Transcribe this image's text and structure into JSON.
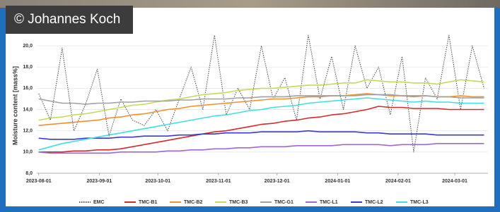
{
  "credit": "© Johannes Koch",
  "chart_data": {
    "type": "line",
    "y_label": "Moisture content [mass%]",
    "x": [
      "2023-08-01",
      "2023-08-07",
      "2023-08-13",
      "2023-08-19",
      "2023-08-25",
      "2023-08-31",
      "2023-09-06",
      "2023-09-12",
      "2023-09-18",
      "2023-09-24",
      "2023-09-30",
      "2023-10-06",
      "2023-10-12",
      "2023-10-18",
      "2023-10-24",
      "2023-10-30",
      "2023-11-05",
      "2023-11-11",
      "2023-11-17",
      "2023-11-23",
      "2023-11-29",
      "2023-12-05",
      "2023-12-11",
      "2023-12-17",
      "2023-12-23",
      "2023-12-29",
      "2024-01-04",
      "2024-01-10",
      "2024-01-16",
      "2024-01-22",
      "2024-01-28",
      "2024-02-03",
      "2024-02-09",
      "2024-02-15",
      "2024-02-21",
      "2024-02-27",
      "2024-03-04",
      "2024-03-10",
      "2024-03-16"
    ],
    "xlim": [
      "2023-07-31",
      "2024-03-18"
    ],
    "xticks": [
      "2023-08-01",
      "2023-09-01",
      "2023-10-01",
      "2023-11-01",
      "2023-12-01",
      "2024-01-01",
      "2024-02-01",
      "2024-03-01"
    ],
    "ylim": [
      8,
      21
    ],
    "yticks": [
      {
        "value": 8,
        "label": "8,0"
      },
      {
        "value": 10,
        "label": "10,0"
      },
      {
        "value": 12,
        "label": "12,0"
      },
      {
        "value": 14,
        "label": "14,0"
      },
      {
        "value": 16,
        "label": "16,0"
      },
      {
        "value": 18,
        "label": "18,0"
      },
      {
        "value": 20,
        "label": "20,0"
      }
    ],
    "grid": true,
    "legend": "bottom",
    "series": [
      {
        "name": "EMC",
        "color": "#555555",
        "linestyle": "dotted",
        "values": [
          15.5,
          13,
          19.8,
          12,
          14.5,
          17.8,
          11.5,
          15,
          13,
          12.5,
          14,
          12,
          15,
          18,
          14,
          21,
          13.5,
          16,
          14,
          20,
          15,
          17,
          13,
          21,
          15,
          19,
          14,
          20,
          16,
          18,
          13.5,
          19,
          10,
          17,
          15,
          21,
          14,
          20,
          16
        ]
      },
      {
        "name": "TMC-B1",
        "color": "#d42a2a",
        "values": [
          10,
          10,
          10,
          10.1,
          10.1,
          10.2,
          10.2,
          10.3,
          10.5,
          10.7,
          10.9,
          11.1,
          11.3,
          11.5,
          11.7,
          11.9,
          12,
          12.2,
          12.4,
          12.6,
          12.7,
          12.9,
          13,
          13.2,
          13.3,
          13.5,
          13.6,
          13.8,
          14,
          14.3,
          14.2,
          14.2,
          14.1,
          14.1,
          14.1,
          14,
          14,
          14,
          14
        ]
      },
      {
        "name": "TMC-B2",
        "color": "#f0902a",
        "values": [
          12.5,
          12.6,
          12.7,
          12.8,
          12.9,
          13,
          13.2,
          13.3,
          13.5,
          13.6,
          13.8,
          14,
          14.1,
          14.3,
          14.4,
          14.5,
          14.6,
          14.7,
          14.8,
          14.9,
          15,
          15,
          15.1,
          15.2,
          15.2,
          15.3,
          15.3,
          15.4,
          15.5,
          15.4,
          15.3,
          15.3,
          15.2,
          15.3,
          15.2,
          15.2,
          15.3,
          15.2,
          15.2
        ]
      },
      {
        "name": "TMC-B3",
        "color": "#c9d85a",
        "values": [
          13,
          13.2,
          13.3,
          13.5,
          13.6,
          13.8,
          14,
          14.2,
          14.4,
          14.5,
          14.7,
          14.9,
          15,
          15.2,
          15.4,
          15.5,
          15.6,
          15.8,
          15.9,
          16,
          16,
          16.1,
          16.2,
          16.3,
          16.3,
          16.4,
          16.5,
          16.5,
          16.8,
          16.7,
          16.6,
          16.6,
          16.5,
          16.5,
          16.4,
          16.6,
          16.8,
          16.7,
          16.6
        ]
      },
      {
        "name": "TMC-G1",
        "color": "#a0a0a0",
        "values": [
          15,
          14.8,
          14.6,
          14.6,
          14.5,
          14.6,
          14.6,
          14.7,
          14.7,
          14.8,
          14.8,
          14.8,
          14.9,
          14.9,
          15,
          15,
          15,
          15.1,
          15.1,
          15.2,
          15.2,
          15.2,
          15.3,
          15.3,
          15.3,
          15.3,
          15.3,
          15.3,
          15.4,
          15.4,
          15.4,
          15.3,
          15.3,
          15.3,
          15.2,
          15.2,
          15.1,
          15.1,
          15.1
        ]
      },
      {
        "name": "TMC-L1",
        "color": "#a066d8",
        "values": [
          10,
          9.9,
          9.9,
          9.9,
          9.9,
          9.9,
          9.9,
          10,
          10,
          10,
          10,
          10.1,
          10.1,
          10.2,
          10.2,
          10.3,
          10.3,
          10.4,
          10.4,
          10.5,
          10.5,
          10.5,
          10.6,
          10.6,
          10.6,
          10.6,
          10.7,
          10.7,
          10.7,
          10.7,
          10.6,
          10.7,
          10.7,
          10.7,
          10.8,
          10.8,
          10.8,
          10.8,
          10.8
        ]
      },
      {
        "name": "TMC-L2",
        "color": "#3a3ad0",
        "values": [
          11.3,
          11.2,
          11.2,
          11.2,
          11.3,
          11.3,
          11.3,
          11.4,
          11.4,
          11.5,
          11.5,
          11.5,
          11.6,
          11.6,
          11.7,
          11.7,
          11.8,
          11.8,
          11.8,
          11.9,
          11.9,
          11.9,
          11.9,
          12,
          11.9,
          11.9,
          11.9,
          11.9,
          11.8,
          11.8,
          11.7,
          11.7,
          11.7,
          11.7,
          11.6,
          11.6,
          11.6,
          11.6,
          11.6
        ]
      },
      {
        "name": "TMC-L3",
        "color": "#40e0e0",
        "values": [
          10.2,
          10.5,
          10.8,
          11,
          11.2,
          11.4,
          11.6,
          11.8,
          12,
          12.2,
          12.4,
          12.6,
          12.8,
          13,
          13.2,
          13.4,
          13.5,
          13.7,
          13.9,
          14,
          14.2,
          14.3,
          14.4,
          14.6,
          14.7,
          14.8,
          14.9,
          15,
          15.1,
          15,
          14.9,
          14.8,
          14.7,
          14.8,
          14.7,
          14.7,
          14.6,
          14.6,
          14.6
        ]
      }
    ]
  }
}
